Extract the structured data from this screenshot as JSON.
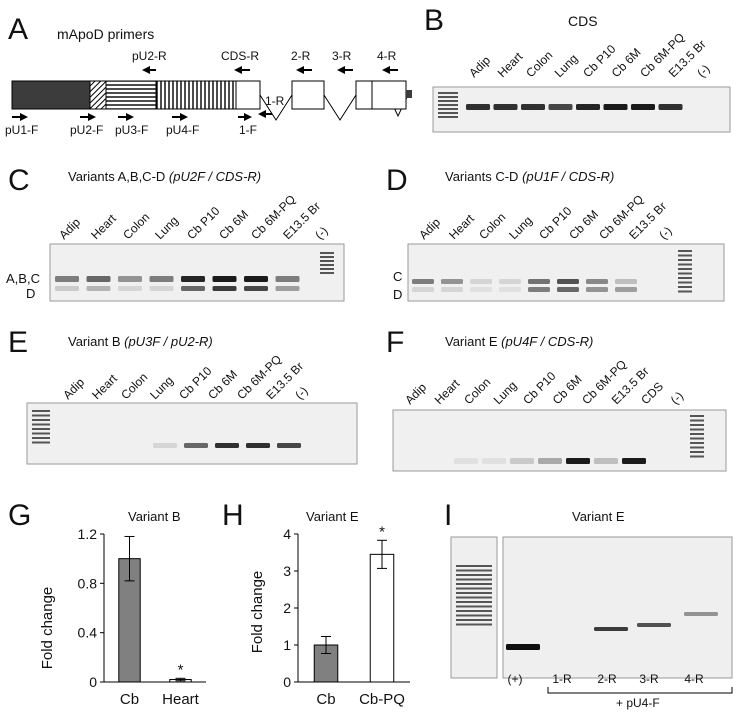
{
  "panels": {
    "A": {
      "letter": "A",
      "title": "mApoD primers",
      "primers": {
        "pU2R": "pU2-R",
        "cdsR": "CDS-R",
        "r2": "2-R",
        "r3": "3-R",
        "r4": "4-R",
        "r1": "1-R",
        "pU1F": "pU1-F",
        "pU2F": "pU2-F",
        "pU3F": "pU3-F",
        "pU4F": "pU4-F",
        "f1": "1-F"
      }
    },
    "B": {
      "letter": "B",
      "title": "CDS",
      "lanes": [
        "Adip",
        "Heart",
        "Colon",
        "Lung",
        "Cb P10",
        "Cb 6M",
        "Cb 6M-PQ",
        "E13.5 Br",
        "(-)"
      ],
      "band_intensity": [
        0.85,
        0.85,
        0.85,
        0.75,
        0.9,
        0.95,
        0.95,
        0.85,
        0
      ]
    },
    "C": {
      "letter": "C",
      "title": "Variants A,B,C-D ",
      "title_italic": "(pU2F / CDS-R)",
      "lanes": [
        "Adip",
        "Heart",
        "Colon",
        "Lung",
        "Cb P10",
        "Cb 6M",
        "Cb 6M-PQ",
        "E13.5 Br",
        "(-)"
      ],
      "band_labels": [
        "A,B,C",
        "D"
      ],
      "upper_intensity": [
        0.5,
        0.6,
        0.4,
        0.5,
        0.9,
        0.95,
        0.95,
        0.5,
        0
      ],
      "lower_intensity": [
        0.15,
        0.25,
        0.1,
        0.1,
        0.6,
        0.8,
        0.75,
        0.35,
        0
      ]
    },
    "D": {
      "letter": "D",
      "title": "Variants C-D ",
      "title_italic": "(pU1F / CDS-R)",
      "lanes": [
        "Adip",
        "Heart",
        "Colon",
        "Lung",
        "Cb P10",
        "Cb 6M",
        "Cb 6M-PQ",
        "E13.5 Br",
        "(-)"
      ],
      "band_labels": [
        "C",
        "D"
      ],
      "upper_intensity": [
        0.5,
        0.4,
        0.1,
        0.1,
        0.55,
        0.7,
        0.45,
        0.2,
        0
      ],
      "lower_intensity": [
        0.1,
        0.1,
        0.05,
        0.05,
        0.5,
        0.6,
        0.4,
        0.35,
        0
      ]
    },
    "E": {
      "letter": "E",
      "title": "Variant B ",
      "title_italic": "(pU3F / pU2-R)",
      "lanes": [
        "Adip",
        "Heart",
        "Colon",
        "Lung",
        "Cb P10",
        "Cb 6M",
        "Cb 6M-PQ",
        "E13.5 Br",
        "(-)"
      ],
      "band_intensity": [
        0,
        0,
        0,
        0.1,
        0.6,
        0.85,
        0.85,
        0.75,
        0
      ]
    },
    "F": {
      "letter": "F",
      "title": "Variant E ",
      "title_italic": "(pU4F / CDS-R)",
      "lanes": [
        "Adip",
        "Heart",
        "Colon",
        "Lung",
        "Cb P10",
        "Cb 6M",
        "Cb 6M-PQ",
        "E13.5 Br",
        "CDS",
        "(-)"
      ],
      "band_intensity": [
        0,
        0,
        0.05,
        0.05,
        0.15,
        0.3,
        0.95,
        0.2,
        0.95,
        0
      ]
    },
    "G": {
      "letter": "G",
      "title": "Variant B",
      "ylabel": "Fold change",
      "ticks": [
        "0",
        "0.4",
        "0.8",
        "1.2"
      ],
      "star": "*"
    },
    "H": {
      "letter": "H",
      "title": "Variant E",
      "ylabel": "Fold change",
      "ticks": [
        "0",
        "1",
        "2",
        "3",
        "4"
      ],
      "star": "*"
    },
    "I": {
      "letter": "I",
      "title": "Variant E",
      "lanes": [
        "(+)",
        "1-R",
        "2-R",
        "3-R",
        "4-R"
      ],
      "bracket_label": "+ pU4-F",
      "band_intensity": [
        1.0,
        0,
        0.8,
        0.7,
        0.4
      ]
    }
  },
  "chart_data": [
    {
      "type": "bar",
      "title": "Variant B",
      "xlabel": "",
      "ylabel": "Fold change",
      "categories": [
        "Cb",
        "Heart"
      ],
      "values": [
        1.0,
        0.02
      ],
      "errors": [
        0.18,
        0.01
      ],
      "ylim": [
        0,
        1.2
      ],
      "colors": [
        "#808080",
        "#ffffff"
      ],
      "grid": false
    },
    {
      "type": "bar",
      "title": "Variant E",
      "xlabel": "",
      "ylabel": "Fold change",
      "categories": [
        "Cb",
        "Cb-PQ"
      ],
      "values": [
        1.0,
        3.45
      ],
      "errors": [
        0.23,
        0.38
      ],
      "ylim": [
        0,
        4
      ],
      "colors": [
        "#808080",
        "#ffffff"
      ],
      "grid": false
    }
  ]
}
